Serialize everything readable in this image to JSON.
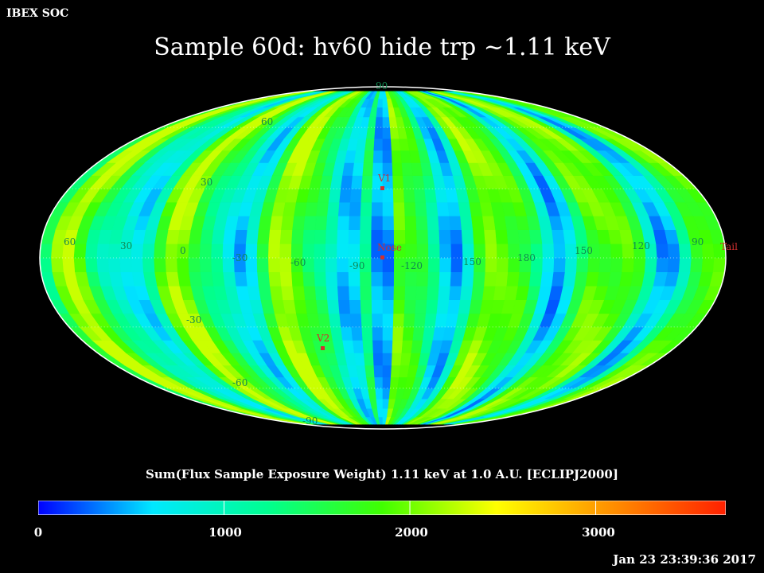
{
  "header": {
    "org": "IBEX SOC",
    "title": "Sample 60d: hv60 hide trp ~1.11 keV"
  },
  "map": {
    "projection": "mollweide",
    "longitude_labels": [
      "60",
      "30",
      "0",
      "-30",
      "-60",
      "-90",
      "-120",
      "150",
      "180",
      "150",
      "120",
      "90"
    ],
    "latitude_labels_north": [
      "90",
      "60",
      "30"
    ],
    "latitude_labels_south": [
      "-30",
      "-60",
      "-90"
    ],
    "markers": [
      {
        "name": "V1",
        "label": "V1"
      },
      {
        "name": "Nose",
        "label": "Nose"
      },
      {
        "name": "V2",
        "label": "V2"
      },
      {
        "name": "Tail",
        "label": "Tail"
      }
    ],
    "marker_color": "#d03030"
  },
  "colorbar": {
    "title": "Sum(Flux Sample Exposure Weight)  1.11 keV at 1.0 A.U. [ECLIPJ2000]",
    "min": 0,
    "max": 3700,
    "ticks": [
      "0",
      "1000",
      "2000",
      "3000"
    ],
    "stops": [
      "#0000ff",
      "#00e8ff",
      "#00ff90",
      "#40ff00",
      "#ffff00",
      "#ff9000",
      "#ff2000"
    ]
  },
  "footer": {
    "timestamp": "Jan 23 23:39:36 2017"
  }
}
